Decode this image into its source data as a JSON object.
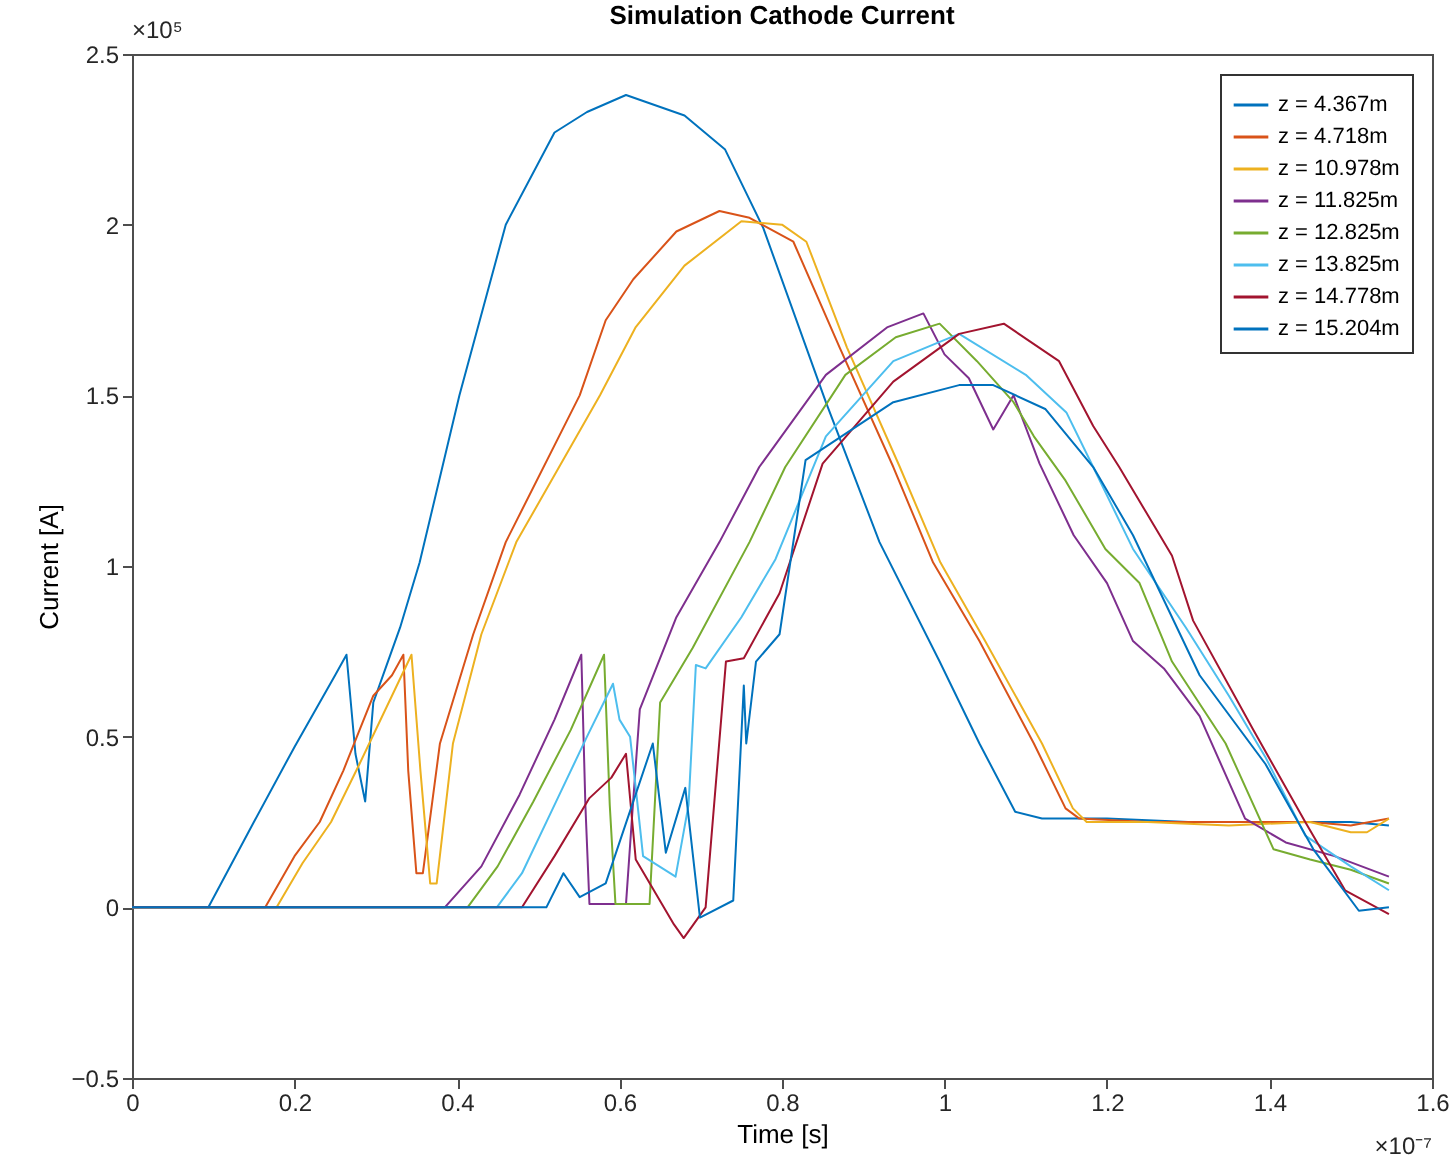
{
  "chart_data": {
    "type": "line",
    "title": "Simulation Cathode Current",
    "xlabel": "Time [s]",
    "ylabel": "Current [A]",
    "annotations": [
      "×10⁵",
      "×10⁻⁷"
    ],
    "xlim": [
      0,
      1.6
    ],
    "xticks": [
      0,
      0.2,
      0.4,
      0.6,
      0.8,
      1,
      1.2,
      1.4,
      1.6
    ],
    "ylim": [
      -0.5,
      2.5
    ],
    "yticks": [
      -0.5,
      0,
      0.5,
      1,
      1.5,
      2,
      2.5
    ],
    "legend": "top right",
    "line_style": "solid",
    "series": [
      {
        "name": "z = 4.367m",
        "color": "#0072bd",
        "x": [
          0,
          0.094,
          0.15,
          0.2,
          0.25,
          0.264,
          0.275,
          0.287,
          0.297,
          0.312,
          0.33,
          0.354,
          0.403,
          0.46,
          0.52,
          0.56,
          0.608,
          0.68,
          0.73,
          0.777,
          0.854,
          0.92,
          0.994,
          1.043,
          1.087,
          1.12,
          1.2,
          1.3,
          1.4,
          1.5,
          1.547
        ],
        "values": [
          0,
          0,
          0.25,
          0.47,
          0.68,
          0.74,
          0.45,
          0.31,
          0.6,
          0.7,
          0.82,
          1.01,
          1.5,
          2.0,
          2.27,
          2.33,
          2.38,
          2.32,
          2.22,
          1.99,
          1.48,
          1.07,
          0.72,
          0.48,
          0.28,
          0.26,
          0.26,
          0.25,
          0.25,
          0.25,
          0.24
        ]
      },
      {
        "name": "z = 4.718m",
        "color": "#d95319",
        "x": [
          0,
          0.164,
          0.2,
          0.231,
          0.26,
          0.297,
          0.32,
          0.334,
          0.34,
          0.35,
          0.358,
          0.379,
          0.42,
          0.46,
          0.551,
          0.583,
          0.617,
          0.67,
          0.723,
          0.76,
          0.814,
          0.871,
          0.937,
          0.986,
          1.043,
          1.11,
          1.149,
          1.166,
          1.25,
          1.35,
          1.45,
          1.5,
          1.547
        ],
        "values": [
          0,
          0,
          0.15,
          0.25,
          0.4,
          0.62,
          0.68,
          0.74,
          0.4,
          0.1,
          0.1,
          0.48,
          0.8,
          1.07,
          1.5,
          1.72,
          1.84,
          1.98,
          2.04,
          2.02,
          1.95,
          1.64,
          1.29,
          1.01,
          0.78,
          0.48,
          0.29,
          0.26,
          0.25,
          0.25,
          0.25,
          0.24,
          0.26
        ]
      },
      {
        "name": "z = 10.978m",
        "color": "#edb120",
        "x": [
          0,
          0.178,
          0.21,
          0.245,
          0.28,
          0.31,
          0.344,
          0.355,
          0.367,
          0.375,
          0.395,
          0.43,
          0.473,
          0.576,
          0.62,
          0.68,
          0.75,
          0.8,
          0.83,
          0.88,
          0.945,
          0.995,
          1.05,
          1.12,
          1.158,
          1.175,
          1.25,
          1.35,
          1.45,
          1.5,
          1.52,
          1.547
        ],
        "values": [
          0,
          0,
          0.13,
          0.25,
          0.42,
          0.57,
          0.74,
          0.4,
          0.07,
          0.07,
          0.48,
          0.8,
          1.07,
          1.5,
          1.7,
          1.88,
          2.01,
          2.0,
          1.95,
          1.64,
          1.29,
          1.01,
          0.78,
          0.48,
          0.29,
          0.25,
          0.25,
          0.24,
          0.25,
          0.22,
          0.22,
          0.26
        ]
      },
      {
        "name": "z = 11.825m",
        "color": "#7e2f8e",
        "x": [
          0,
          0.385,
          0.43,
          0.477,
          0.52,
          0.553,
          0.558,
          0.563,
          0.608,
          0.615,
          0.625,
          0.67,
          0.723,
          0.772,
          0.854,
          0.93,
          0.974,
          1.0,
          1.03,
          1.06,
          1.085,
          1.117,
          1.159,
          1.2,
          1.232,
          1.27,
          1.314,
          1.37,
          1.42,
          1.48,
          1.547
        ],
        "values": [
          0,
          0,
          0.12,
          0.33,
          0.55,
          0.74,
          0.3,
          0.01,
          0.01,
          0.25,
          0.58,
          0.85,
          1.07,
          1.29,
          1.56,
          1.7,
          1.74,
          1.62,
          1.55,
          1.4,
          1.5,
          1.3,
          1.09,
          0.95,
          0.78,
          0.7,
          0.56,
          0.26,
          0.19,
          0.15,
          0.09
        ]
      },
      {
        "name": "z = 12.825m",
        "color": "#77ac30",
        "x": [
          0,
          0.413,
          0.45,
          0.494,
          0.54,
          0.581,
          0.588,
          0.595,
          0.637,
          0.65,
          0.69,
          0.76,
          0.804,
          0.878,
          0.94,
          0.994,
          1.04,
          1.085,
          1.11,
          1.149,
          1.198,
          1.24,
          1.28,
          1.346,
          1.405,
          1.45,
          1.5,
          1.547
        ],
        "values": [
          0,
          0,
          0.12,
          0.31,
          0.52,
          0.74,
          0.3,
          0.01,
          0.01,
          0.6,
          0.76,
          1.07,
          1.29,
          1.56,
          1.67,
          1.71,
          1.6,
          1.48,
          1.38,
          1.25,
          1.05,
          0.95,
          0.72,
          0.48,
          0.17,
          0.14,
          0.11,
          0.07
        ]
      },
      {
        "name": "z = 13.825m",
        "color": "#4dbeee",
        "x": [
          0,
          0.449,
          0.48,
          0.518,
          0.56,
          0.592,
          0.6,
          0.613,
          0.62,
          0.629,
          0.669,
          0.685,
          0.694,
          0.706,
          0.75,
          0.792,
          0.854,
          0.937,
          1.018,
          1.1,
          1.15,
          1.183,
          1.232,
          1.297,
          1.35,
          1.395,
          1.444,
          1.5,
          1.547
        ],
        "values": [
          0,
          0,
          0.1,
          0.29,
          0.5,
          0.655,
          0.55,
          0.5,
          0.35,
          0.15,
          0.09,
          0.3,
          0.71,
          0.7,
          0.85,
          1.02,
          1.38,
          1.6,
          1.68,
          1.56,
          1.45,
          1.29,
          1.05,
          0.82,
          0.62,
          0.44,
          0.21,
          0.12,
          0.05
        ]
      },
      {
        "name": "z = 14.778m",
        "color": "#a2142f",
        "x": [
          0,
          0.48,
          0.52,
          0.563,
          0.59,
          0.608,
          0.62,
          0.667,
          0.679,
          0.706,
          0.731,
          0.753,
          0.797,
          0.85,
          0.937,
          1.018,
          1.073,
          1.141,
          1.183,
          1.215,
          1.25,
          1.28,
          1.306,
          1.38,
          1.444,
          1.493,
          1.547
        ],
        "values": [
          0,
          0,
          0.15,
          0.32,
          0.38,
          0.45,
          0.14,
          -0.05,
          -0.09,
          0,
          0.72,
          0.73,
          0.92,
          1.3,
          1.54,
          1.68,
          1.71,
          1.6,
          1.41,
          1.29,
          1.15,
          1.03,
          0.84,
          0.52,
          0.25,
          0.05,
          -0.02
        ]
      },
      {
        "name": "z = 15.204m",
        "color": "#0072bd",
        "x": [
          0,
          0.51,
          0.531,
          0.551,
          0.583,
          0.641,
          0.657,
          0.681,
          0.699,
          0.74,
          0.753,
          0.756,
          0.768,
          0.797,
          0.829,
          0.937,
          1.018,
          1.06,
          1.124,
          1.183,
          1.232,
          1.314,
          1.395,
          1.454,
          1.51,
          1.547
        ],
        "values": [
          0,
          0,
          0.1,
          0.03,
          0.07,
          0.48,
          0.16,
          0.35,
          -0.03,
          0.02,
          0.65,
          0.48,
          0.72,
          0.8,
          1.31,
          1.48,
          1.53,
          1.53,
          1.46,
          1.29,
          1.09,
          0.68,
          0.42,
          0.17,
          -0.01,
          0
        ]
      }
    ]
  }
}
